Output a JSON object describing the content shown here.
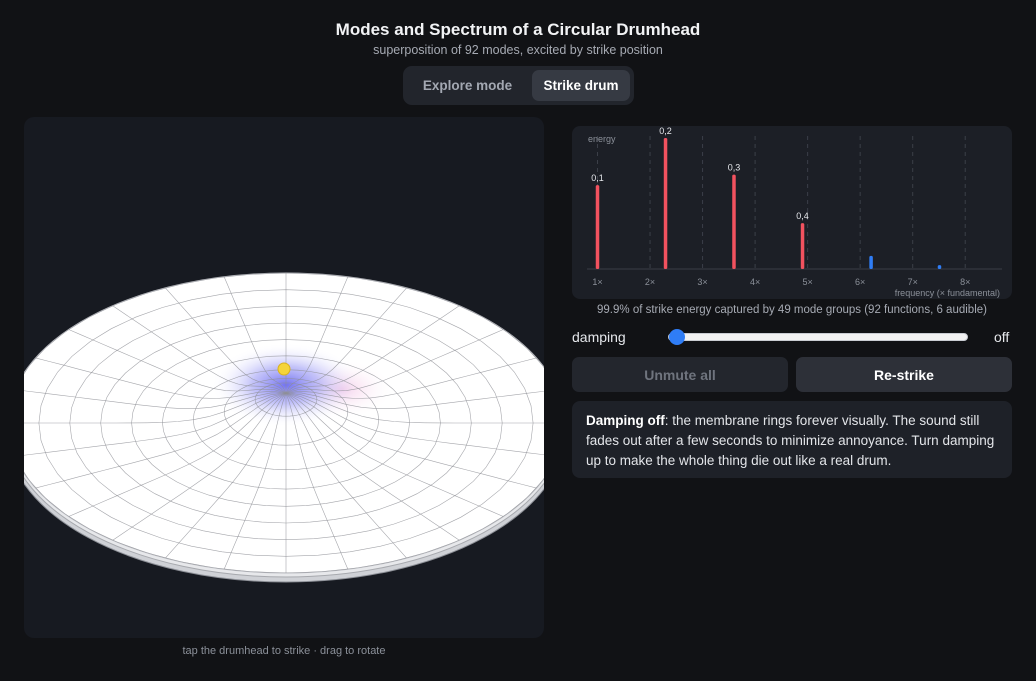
{
  "header": {
    "title": "Modes and Spectrum of a Circular Drumhead",
    "subtitle": "superposition of 92 modes, excited by strike position"
  },
  "tabs": [
    {
      "label": "Explore mode",
      "active": false
    },
    {
      "label": "Strike drum",
      "active": true
    }
  ],
  "viewport": {
    "hint": "tap the drumhead to strike · drag to rotate"
  },
  "spectrum": {
    "caption": "99.9% of strike energy captured by 49 mode groups (92 functions, 6 audible)"
  },
  "chart_data": {
    "type": "bar",
    "ylabel": "energy",
    "xlabel": "frequency (× fundamental)",
    "xlim": [
      0.8,
      8.7
    ],
    "ticks": [
      "1×",
      "2×",
      "3×",
      "4×",
      "5×",
      "6×",
      "7×",
      "8×"
    ],
    "tick_values": [
      1,
      2,
      3,
      4,
      5,
      6,
      7,
      8
    ],
    "series": [
      {
        "color": "#f2525f",
        "points": [
          {
            "x": 1.0,
            "y": 0.64,
            "label": "0,1"
          },
          {
            "x": 2.295,
            "y": 1.0,
            "label": "0,2"
          },
          {
            "x": 3.598,
            "y": 0.72,
            "label": "0,3"
          },
          {
            "x": 4.903,
            "y": 0.35,
            "label": "0,4"
          }
        ]
      },
      {
        "color": "#2f7df6",
        "points": [
          {
            "x": 6.208,
            "y": 0.1
          },
          {
            "x": 7.51,
            "y": 0.03
          }
        ]
      }
    ]
  },
  "controls": {
    "damping_label": "damping",
    "damping_value": "off",
    "damping_level": 0,
    "unmute_label": "Unmute all",
    "restrike_label": "Re-strike"
  },
  "note": {
    "bold": "Damping off",
    "text": ": the membrane rings forever visually. The sound still fades out after a few seconds to minimize annoyance. Turn damping up to make the whole thing die out like a real drum."
  },
  "colors": {
    "accent": "#2f7df6",
    "strike_marker": "#f5d43a",
    "bar_red": "#f2525f"
  }
}
